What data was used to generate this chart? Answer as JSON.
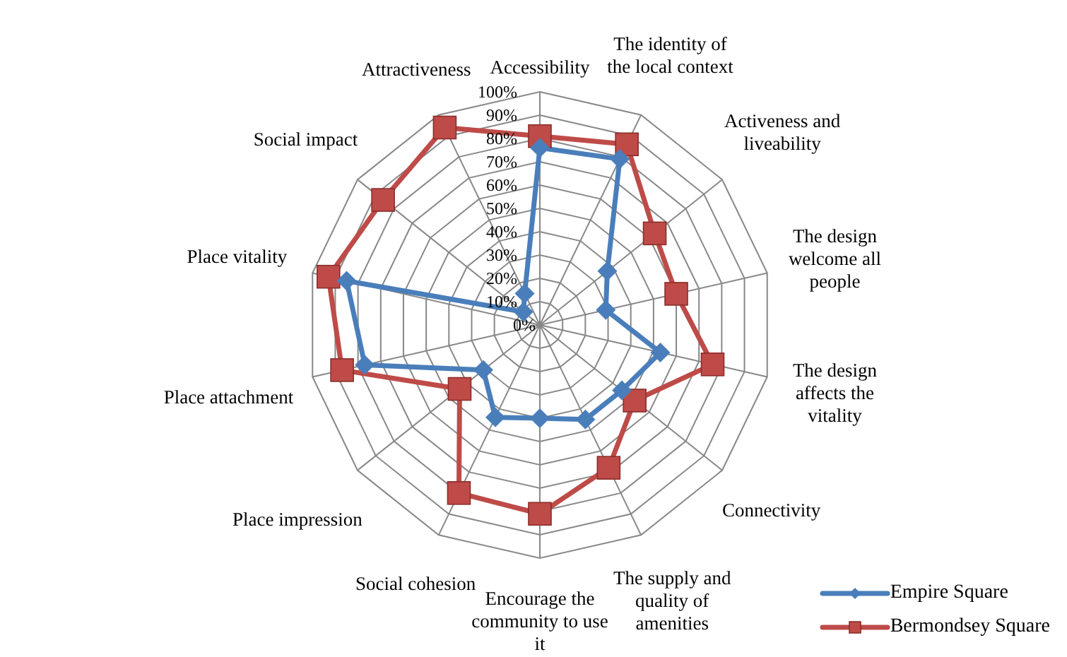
{
  "chart_data": {
    "type": "radar",
    "categories": [
      "Accessibility",
      "The identity of the local context",
      "Activeness and liveability",
      "The design welcome all people",
      "The design affects the vitality",
      "Connectivity",
      "The supply and quality of amenities",
      "Encourage the community to use it",
      "Social cohesion",
      "Place impression",
      "Place attachment",
      "Place vitality",
      "Social impact",
      "Attractiveness"
    ],
    "series": [
      {
        "name": "Empire Square",
        "color": "#4a7ebb",
        "marker": "diamond",
        "values": [
          76,
          79,
          37,
          29,
          53,
          45,
          45,
          40,
          44,
          31,
          77,
          85,
          9,
          15
        ]
      },
      {
        "name": "Bermondsey Square",
        "color": "#be4b48",
        "marker": "square",
        "values": [
          81,
          86,
          63,
          60,
          76,
          52,
          68,
          81,
          80,
          44,
          87,
          93,
          86,
          94
        ]
      }
    ],
    "ylim": [
      0,
      100
    ],
    "yticks": [
      {
        "value": 0,
        "label": "0%"
      },
      {
        "value": 10,
        "label": "10%"
      },
      {
        "value": 20,
        "label": "20%"
      },
      {
        "value": 30,
        "label": "30%"
      },
      {
        "value": 40,
        "label": "40%"
      },
      {
        "value": 50,
        "label": "50%"
      },
      {
        "value": 60,
        "label": "60%"
      },
      {
        "value": 70,
        "label": "70%"
      },
      {
        "value": 80,
        "label": "80%"
      },
      {
        "value": 90,
        "label": "90%"
      },
      {
        "value": 100,
        "label": "100%"
      }
    ],
    "grid": true,
    "legend": "bottom right"
  }
}
